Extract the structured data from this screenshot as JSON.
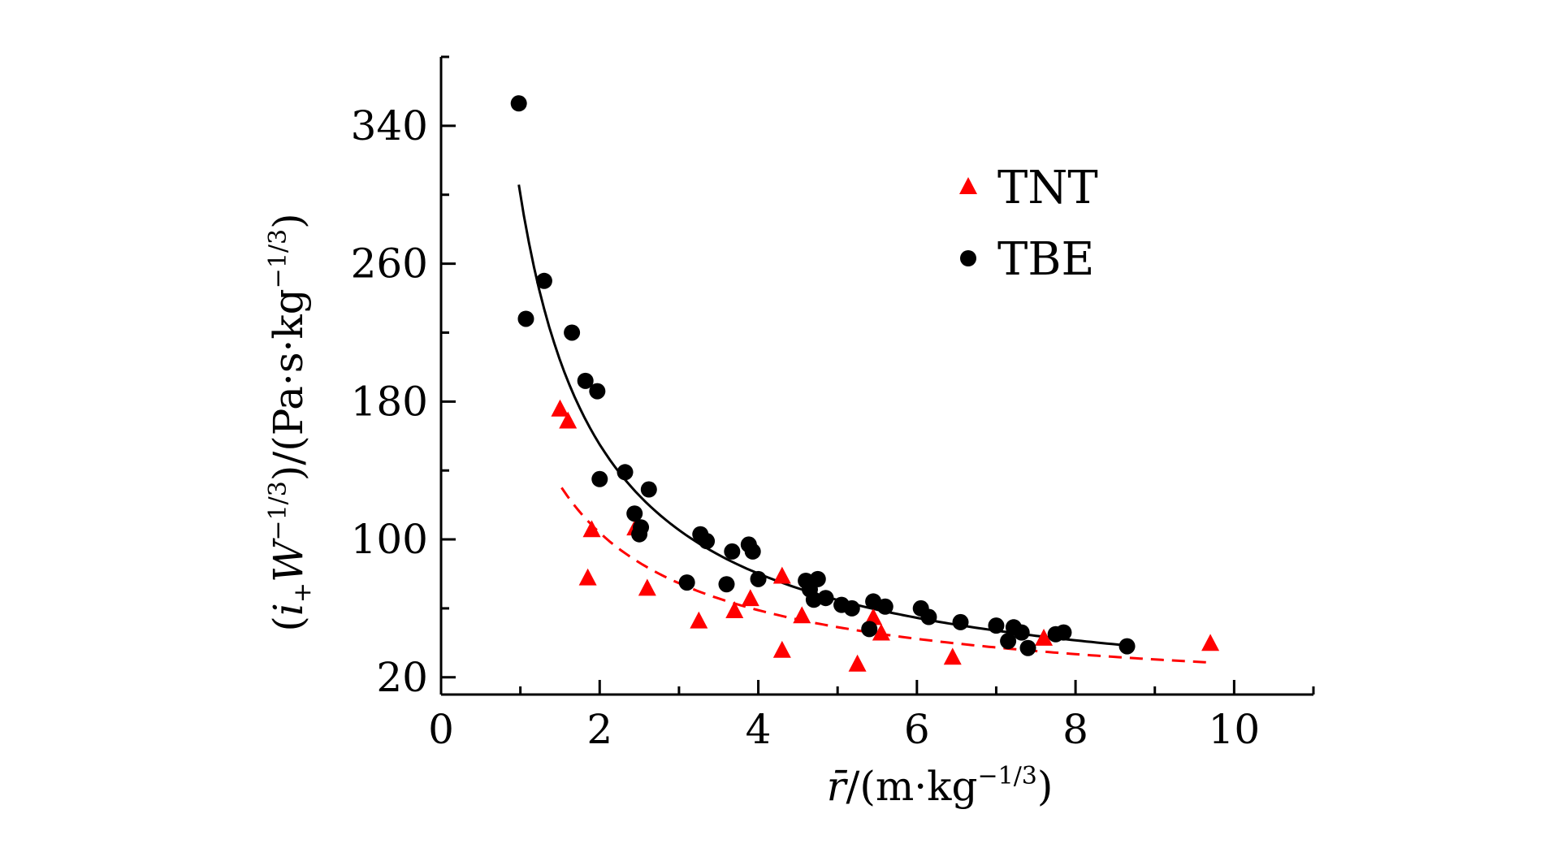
{
  "chart_data": {
    "type": "scatter",
    "x_axis": {
      "range": [
        0,
        11
      ],
      "ticks": [
        0,
        2,
        4,
        6,
        8,
        10
      ],
      "label": {
        "var": "r̄",
        "open": "/(m·kg",
        "sup": "−1/3",
        "close": ")"
      }
    },
    "y_axis": {
      "range": [
        10,
        380
      ],
      "ticks": [
        20,
        100,
        180,
        260,
        340
      ],
      "label": {
        "open": "(",
        "var": "i",
        "sub": "+",
        "var2": "W",
        "sup": "−1/3",
        "mid": ")/(Pa·s·kg",
        "sup2": "−1/3",
        "close": ")"
      }
    },
    "legend": {
      "placement": "top-right",
      "entries": [
        {
          "name": "TNT",
          "marker": "triangle",
          "color": "#ff0000"
        },
        {
          "name": "TBE",
          "marker": "circle",
          "color": "#000000"
        }
      ]
    },
    "series": [
      {
        "name": "TNT",
        "marker": "triangle",
        "color": "#ff0000",
        "points": [
          [
            1.5,
            176
          ],
          [
            1.6,
            169
          ],
          [
            1.9,
            106
          ],
          [
            1.85,
            78
          ],
          [
            2.45,
            107
          ],
          [
            2.6,
            72
          ],
          [
            3.25,
            53
          ],
          [
            3.7,
            59
          ],
          [
            3.9,
            66
          ],
          [
            4.3,
            79
          ],
          [
            4.3,
            36
          ],
          [
            4.55,
            56
          ],
          [
            5.25,
            28
          ],
          [
            5.45,
            55
          ],
          [
            5.55,
            46
          ],
          [
            6.45,
            32
          ],
          [
            7.6,
            43
          ],
          [
            9.7,
            40
          ]
        ]
      },
      {
        "name": "TBE",
        "marker": "circle",
        "color": "#000000",
        "points": [
          [
            0.98,
            353
          ],
          [
            1.07,
            228
          ],
          [
            1.3,
            250
          ],
          [
            1.65,
            220
          ],
          [
            1.82,
            192
          ],
          [
            1.97,
            186
          ],
          [
            2.0,
            135
          ],
          [
            2.32,
            139
          ],
          [
            2.44,
            115
          ],
          [
            2.5,
            103
          ],
          [
            2.52,
            107
          ],
          [
            2.62,
            129
          ],
          [
            3.1,
            75
          ],
          [
            3.27,
            103
          ],
          [
            3.35,
            99
          ],
          [
            3.6,
            74
          ],
          [
            3.67,
            93
          ],
          [
            3.88,
            97
          ],
          [
            3.93,
            93
          ],
          [
            4.0,
            77
          ],
          [
            4.6,
            76
          ],
          [
            4.65,
            71
          ],
          [
            4.7,
            65
          ],
          [
            4.75,
            77
          ],
          [
            4.85,
            66
          ],
          [
            5.05,
            62
          ],
          [
            5.18,
            60
          ],
          [
            5.4,
            48
          ],
          [
            5.45,
            64
          ],
          [
            5.6,
            61
          ],
          [
            6.05,
            60
          ],
          [
            6.15,
            55
          ],
          [
            6.55,
            52
          ],
          [
            7.0,
            50
          ],
          [
            7.15,
            41
          ],
          [
            7.22,
            49
          ],
          [
            7.32,
            46
          ],
          [
            7.4,
            37
          ],
          [
            7.75,
            45
          ],
          [
            7.85,
            46
          ],
          [
            8.65,
            38
          ]
        ]
      }
    ],
    "fit_lines": [
      {
        "series": "TBE",
        "style": "solid",
        "color": "#000000",
        "x_range": [
          0.98,
          8.65
        ]
      },
      {
        "series": "TNT",
        "style": "dashed",
        "color": "#ff0000",
        "x_range": [
          1.52,
          9.7
        ]
      }
    ]
  }
}
